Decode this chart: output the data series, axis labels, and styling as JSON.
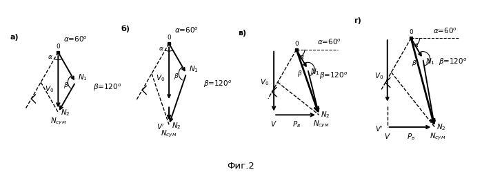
{
  "fig_label": "Фиг.2",
  "panels": [
    "а)",
    "б)",
    "в)",
    "г)"
  ],
  "alpha_text": "α=60°",
  "beta_text": "β=120°",
  "background": "#ffffff"
}
